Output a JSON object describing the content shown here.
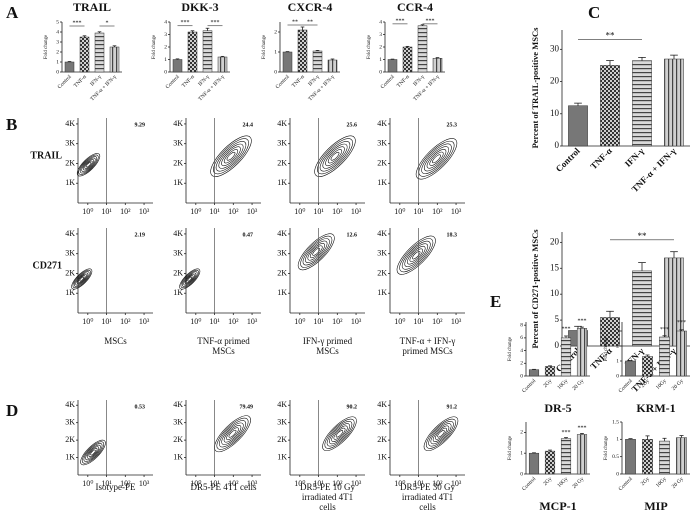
{
  "panel_labels": [
    "A",
    "B",
    "C",
    "D",
    "E"
  ],
  "chart_data": [
    {
      "type": "bar",
      "title": "TRAIL",
      "ylabel": "Fold change",
      "categories": [
        "Control",
        "TNF-α",
        "IFN-γ",
        "TNF-α + IFN-γ"
      ],
      "values": [
        1,
        3.5,
        3.9,
        2.5
      ],
      "errors": [
        0.05,
        0.12,
        0.12,
        0.12
      ],
      "colors": [
        "#777777",
        "#cfcfcf",
        "#d9d9d9",
        "#d0d0d0"
      ],
      "patterns": [
        "solid",
        "checker",
        "hlines",
        "vlines"
      ],
      "ylim": [
        0,
        5
      ],
      "yticks": [
        0,
        1,
        2,
        3,
        4,
        5
      ],
      "title_position": "top",
      "annotations": [
        {
          "text": "***",
          "between": [
            0,
            1
          ],
          "y": 4.6
        },
        {
          "text": "*",
          "between": [
            2,
            3
          ],
          "y": 4.6
        }
      ]
    },
    {
      "type": "bar",
      "title": "DKK-3",
      "ylabel": "Fold change",
      "categories": [
        "Control",
        "TNF-α",
        "IFN-γ",
        "TNF-α + IFN-γ"
      ],
      "values": [
        1,
        3.2,
        3.3,
        1.2
      ],
      "errors": [
        0.05,
        0.1,
        0.2,
        0.05
      ],
      "colors": [
        "#777777",
        "#cfcfcf",
        "#d9d9d9",
        "#d0d0d0"
      ],
      "patterns": [
        "solid",
        "checker",
        "hlines",
        "vlines"
      ],
      "ylim": [
        0,
        4
      ],
      "yticks": [
        0,
        1,
        2,
        3,
        4
      ],
      "title_position": "top",
      "annotations": [
        {
          "text": "***",
          "between": [
            0,
            1
          ],
          "y": 3.7
        },
        {
          "text": "***",
          "between": [
            2,
            3
          ],
          "y": 3.7
        }
      ]
    },
    {
      "type": "bar",
      "title": "CXCR-4",
      "ylabel": "Fold change",
      "categories": [
        "Control",
        "TNF-α",
        "IFN-γ",
        "TNF-α + IFN-γ"
      ],
      "values": [
        1,
        2.1,
        1.05,
        0.6
      ],
      "errors": [
        0.02,
        0.15,
        0.03,
        0.05
      ],
      "colors": [
        "#777777",
        "#cfcfcf",
        "#d9d9d9",
        "#d0d0d0"
      ],
      "patterns": [
        "solid",
        "checker",
        "hlines",
        "vlines"
      ],
      "ylim": [
        0,
        2.5
      ],
      "yticks": [
        0,
        1,
        2
      ],
      "title_position": "top",
      "annotations": [
        {
          "text": "**",
          "between": [
            0,
            1
          ],
          "y": 2.35
        },
        {
          "text": "**",
          "between": [
            1,
            2
          ],
          "y": 2.35
        }
      ]
    },
    {
      "type": "bar",
      "title": "CCR-4",
      "ylabel": "Fold change",
      "categories": [
        "Control",
        "TNF-α",
        "IFN-γ",
        "TNF-α + IFN-γ"
      ],
      "values": [
        1,
        2,
        3.7,
        1.1
      ],
      "errors": [
        0.03,
        0.05,
        0.08,
        0.05
      ],
      "colors": [
        "#777777",
        "#cfcfcf",
        "#d9d9d9",
        "#d0d0d0"
      ],
      "patterns": [
        "solid",
        "checker",
        "hlines",
        "vlines"
      ],
      "ylim": [
        0,
        4
      ],
      "yticks": [
        0,
        1,
        2,
        3,
        4
      ],
      "title_position": "top",
      "annotations": [
        {
          "text": "***",
          "between": [
            0,
            1
          ],
          "y": 3.85
        },
        {
          "text": "***",
          "between": [
            2,
            3
          ],
          "y": 3.85
        }
      ]
    },
    {
      "type": "bar",
      "ylabel": "Percent of TRAIL-positive MSCs",
      "categories": [
        "Control",
        "TNF-α",
        "IFN-γ",
        "TNF-α + IFN-γ"
      ],
      "values": [
        12.5,
        25,
        26.5,
        27
      ],
      "errors": [
        0.8,
        1.5,
        1,
        1.2
      ],
      "colors": [
        "#777777",
        "#cfcfcf",
        "#d9d9d9",
        "#d0d0d0"
      ],
      "patterns": [
        "solid",
        "checker",
        "hlines",
        "vlines"
      ],
      "ylim": [
        0,
        36
      ],
      "yticks": [
        0,
        10,
        20,
        30
      ],
      "annotations": [
        {
          "text": "**",
          "between": [
            0,
            2
          ],
          "y": 33
        }
      ]
    },
    {
      "type": "bar",
      "ylabel": "Percent of CD271-positive MSCs",
      "categories": [
        "Control",
        "TNF-α",
        "IFN-γ",
        "TNF-α + IFN-γ"
      ],
      "values": [
        3,
        5.5,
        14.5,
        17
      ],
      "errors": [
        0.8,
        1.2,
        1.6,
        1.2
      ],
      "colors": [
        "#777777",
        "#cfcfcf",
        "#d9d9d9",
        "#d0d0d0"
      ],
      "patterns": [
        "solid",
        "checker",
        "hlines",
        "vlines"
      ],
      "ylim": [
        0,
        22
      ],
      "yticks": [
        0,
        5,
        10,
        15,
        20
      ],
      "annotations": [
        {
          "text": "**",
          "between": [
            1,
            3
          ],
          "y": 20.5
        }
      ]
    },
    {
      "type": "bar",
      "title": "DR-5",
      "ylabel": "Fold change",
      "categories": [
        "Control",
        "2Gy",
        "10Gy",
        "20 Gy"
      ],
      "values": [
        1,
        1.5,
        6,
        7.5
      ],
      "errors": [
        0.05,
        0.1,
        0.3,
        0.2
      ],
      "colors": [
        "#777777",
        "#cfcfcf",
        "#d9d9d9",
        "#d0d0d0"
      ],
      "patterns": [
        "solid",
        "checker",
        "hlines",
        "vlines"
      ],
      "ylim": [
        0,
        8.5
      ],
      "yticks": [
        0,
        2,
        4,
        6,
        8
      ],
      "title_position": "bottom",
      "annotations": [
        {
          "text": "***",
          "between": [
            2,
            2
          ],
          "y": 6.9
        },
        {
          "text": "***",
          "between": [
            3,
            3
          ],
          "y": 8.2
        }
      ]
    },
    {
      "type": "bar",
      "title": "KRM-1",
      "ylabel": "Fold change",
      "categories": [
        "Control",
        "2Gy",
        "10Gy",
        "20 Gy"
      ],
      "values": [
        1,
        1.3,
        2.6,
        3
      ],
      "errors": [
        0.03,
        0.1,
        0.08,
        0.08
      ],
      "colors": [
        "#777777",
        "#cfcfcf",
        "#d9d9d9",
        "#d0d0d0"
      ],
      "patterns": [
        "solid",
        "checker",
        "hlines",
        "vlines"
      ],
      "ylim": [
        0,
        3.6
      ],
      "yticks": [
        0,
        1,
        2,
        3
      ],
      "title_position": "bottom",
      "annotations": [
        {
          "text": "***",
          "between": [
            2,
            2
          ],
          "y": 2.9
        },
        {
          "text": "***",
          "between": [
            3,
            3
          ],
          "y": 3.35
        }
      ]
    },
    {
      "type": "bar",
      "title": "MCP-1",
      "ylabel": "Fold change",
      "categories": [
        "Control",
        "2Gy",
        "10Gy",
        "20 Gy"
      ],
      "values": [
        1,
        1.1,
        1.7,
        1.9
      ],
      "errors": [
        0.02,
        0.05,
        0.05,
        0.05
      ],
      "colors": [
        "#777777",
        "#cfcfcf",
        "#d9d9d9",
        "#d0d0d0"
      ],
      "patterns": [
        "solid",
        "checker",
        "hlines",
        "vlines"
      ],
      "ylim": [
        0,
        2.5
      ],
      "yticks": [
        0,
        1,
        2
      ],
      "title_position": "bottom",
      "annotations": [
        {
          "text": "***",
          "between": [
            2,
            2
          ],
          "y": 1.85
        },
        {
          "text": "***",
          "between": [
            3,
            3
          ],
          "y": 2.05
        }
      ]
    },
    {
      "type": "bar",
      "title": "MIP",
      "ylabel": "Fold change",
      "categories": [
        "Control",
        "2Gy",
        "10Gy",
        "20 Gy"
      ],
      "values": [
        1,
        1,
        0.95,
        1.05
      ],
      "errors": [
        0.02,
        0.1,
        0.08,
        0.06
      ],
      "colors": [
        "#777777",
        "#cfcfcf",
        "#d9d9d9",
        "#d0d0d0"
      ],
      "patterns": [
        "solid",
        "checker",
        "hlines",
        "vlines"
      ],
      "ylim": [
        0,
        1.5
      ],
      "yticks": [
        0,
        0.5,
        1,
        1.5
      ],
      "title_position": "bottom"
    },
    {
      "type": "contour",
      "log_x": true,
      "gate_x": 10,
      "rows": [
        {
          "label": "TRAIL",
          "gates": [
            9.29,
            24.4,
            25.6,
            25.3
          ]
        },
        {
          "label": "CD271",
          "gates": [
            2.19,
            0.47,
            12.6,
            18.3
          ]
        }
      ],
      "captions": [
        [
          "MSCs"
        ],
        [
          "TNF-α primed",
          "MSCs"
        ],
        [
          "IFN-γ primed",
          "MSCs"
        ],
        [
          "TNF-α + IFN-γ",
          "primed MSCs"
        ]
      ],
      "xlim": [
        0.3,
        3000
      ],
      "xticks": [
        {
          "value": 1,
          "label": "10⁰"
        },
        {
          "value": 10,
          "label": "10¹"
        },
        {
          "value": 100,
          "label": "10²"
        },
        {
          "value": 1000,
          "label": "10³"
        }
      ],
      "ylim": [
        0,
        4300
      ],
      "yticks": [
        {
          "value": 1000,
          "label": "1K"
        },
        {
          "value": 2000,
          "label": "2K"
        },
        {
          "value": 3000,
          "label": "3K"
        },
        {
          "value": 4000,
          "label": "4K"
        }
      ]
    },
    {
      "type": "contour",
      "log_x": true,
      "gate_x": 10,
      "rows": [
        {
          "gates": [
            0.53,
            79.49,
            90.2,
            91.2
          ]
        }
      ],
      "captions": [
        [
          "Isotype-PE"
        ],
        [
          "DR5-PE 4T1 cells"
        ],
        [
          "DR5-PE 10 Gy",
          "irradiated 4T1",
          "cells"
        ],
        [
          "DR5-PE 30 Gy",
          "irradiated 4T1",
          "cells"
        ]
      ],
      "xlim": [
        0.3,
        3000
      ],
      "xticks": [
        {
          "value": 1,
          "label": "10⁰"
        },
        {
          "value": 10,
          "label": "10¹"
        },
        {
          "value": 100,
          "label": "10²"
        },
        {
          "value": 1000,
          "label": "10³"
        }
      ],
      "ylim": [
        0,
        4300
      ],
      "yticks": [
        {
          "value": 1000,
          "label": "1K"
        },
        {
          "value": 2000,
          "label": "2K"
        },
        {
          "value": 3000,
          "label": "3K"
        },
        {
          "value": 4000,
          "label": "4K"
        }
      ]
    }
  ]
}
